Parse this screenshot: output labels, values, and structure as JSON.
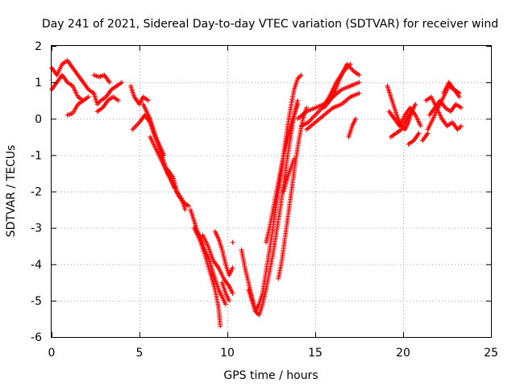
{
  "chart_data": {
    "type": "scatter",
    "title": "Day 241 of 2021, Sidereal Day-to-day VTEC variation (SDTVAR) for receiver wind",
    "xlabel": "GPS time / hours",
    "ylabel": "SDTVAR / TECUs",
    "xlim": [
      0,
      25
    ],
    "ylim": [
      -6,
      2
    ],
    "xticks": [
      0,
      5,
      10,
      15,
      20,
      25
    ],
    "yticks": [
      -6,
      -5,
      -4,
      -3,
      -2,
      -1,
      0,
      1,
      2
    ],
    "grid": true,
    "marker": "+",
    "color": "#ff0000",
    "series": [
      {
        "name": "SDTVAR",
        "segments": [
          {
            "x": [
              0.0,
              0.3,
              0.6,
              0.9,
              1.2,
              1.5,
              1.8,
              2.1,
              2.4
            ],
            "y": [
              1.4,
              1.2,
              1.5,
              1.6,
              1.4,
              1.2,
              1.0,
              0.8,
              0.7
            ]
          },
          {
            "x": [
              0.0,
              0.3,
              0.6,
              0.9,
              1.2,
              1.5,
              1.8
            ],
            "y": [
              0.8,
              1.0,
              1.2,
              1.0,
              0.9,
              0.6,
              0.5
            ]
          },
          {
            "x": [
              0.9,
              1.2,
              1.5,
              1.8,
              2.1
            ],
            "y": [
              0.1,
              0.15,
              0.4,
              0.5,
              0.6
            ]
          },
          {
            "x": [
              2.4,
              2.7,
              3.0,
              3.3
            ],
            "y": [
              1.2,
              1.15,
              1.2,
              1.0
            ]
          },
          {
            "x": [
              2.4,
              2.6,
              2.8,
              3.1,
              3.4,
              3.7,
              4.0
            ],
            "y": [
              0.7,
              0.4,
              0.5,
              0.6,
              0.8,
              0.9,
              1.0
            ]
          },
          {
            "x": [
              2.6,
              2.9,
              3.2,
              3.5,
              3.8
            ],
            "y": [
              0.2,
              0.3,
              0.5,
              0.6,
              0.5
            ]
          },
          {
            "x": [
              4.5,
              4.7,
              5.0,
              5.2,
              5.5
            ],
            "y": [
              0.9,
              0.6,
              0.4,
              0.6,
              0.5
            ]
          },
          {
            "x": [
              4.6,
              4.8,
              5.0,
              5.3,
              5.6,
              5.8,
              6.1,
              6.4
            ],
            "y": [
              -0.3,
              -0.2,
              -0.1,
              0.1,
              -0.1,
              -0.4,
              -0.7,
              -1.0
            ]
          },
          {
            "x": [
              5.2,
              5.4,
              5.6,
              5.8,
              6.0,
              6.2,
              6.4,
              6.6,
              6.8,
              7.0
            ],
            "y": [
              0.4,
              0.2,
              0.0,
              -0.3,
              -0.6,
              -0.9,
              -1.2,
              -1.5,
              -1.7,
              -1.9
            ]
          },
          {
            "x": [
              5.6,
              5.9,
              6.2,
              6.5,
              6.8,
              7.1,
              7.4,
              7.6
            ],
            "y": [
              -0.5,
              -0.8,
              -1.1,
              -1.4,
              -1.7,
              -2.0,
              -2.2,
              -2.5
            ]
          },
          {
            "x": [
              6.6,
              6.9,
              7.2,
              7.5,
              7.8
            ],
            "y": [
              -1.4,
              -1.6,
              -2.1,
              -2.3,
              -2.4
            ]
          },
          {
            "x": [
              7.9,
              8.1,
              8.3,
              8.5,
              8.7,
              8.9,
              9.1,
              9.3,
              9.5,
              9.7,
              9.9
            ],
            "y": [
              -2.5,
              -2.8,
              -3.1,
              -3.3,
              -3.6,
              -3.8,
              -4.1,
              -4.4,
              -4.7,
              -4.9,
              -5.1
            ]
          },
          {
            "x": [
              8.1,
              8.4,
              8.7,
              9.0,
              9.3,
              9.5,
              9.6
            ],
            "y": [
              -3.0,
              -3.3,
              -3.7,
              -4.2,
              -4.7,
              -5.2,
              -5.7
            ]
          },
          {
            "x": [
              8.6,
              8.9,
              9.2,
              9.5,
              9.8,
              10.1,
              10.3
            ],
            "y": [
              -3.2,
              -3.5,
              -3.9,
              -4.1,
              -4.4,
              -4.6,
              -4.8
            ]
          },
          {
            "x": [
              9.3,
              9.5,
              9.7,
              9.9,
              10.1,
              10.3
            ],
            "y": [
              -3.1,
              -3.3,
              -3.6,
              -4.0,
              -4.3,
              -4.1
            ]
          },
          {
            "x": [
              9.7,
              9.9,
              10.1
            ],
            "y": [
              -4.5,
              -4.8,
              -5.0
            ]
          },
          {
            "x": [
              10.3
            ],
            "y": [
              -3.4
            ]
          },
          {
            "x": [
              10.8,
              11.0,
              11.2,
              11.4,
              11.6,
              11.8,
              12.0,
              12.2,
              12.4,
              12.6,
              12.8,
              13.0,
              13.2,
              13.4,
              13.6,
              13.8,
              14.0
            ],
            "y": [
              -3.6,
              -4.1,
              -4.5,
              -4.9,
              -5.3,
              -5.4,
              -5.1,
              -4.7,
              -4.2,
              -3.7,
              -3.1,
              -2.5,
              -1.8,
              -1.1,
              -0.5,
              0.1,
              0.5
            ]
          },
          {
            "x": [
              11.2,
              11.4,
              11.6,
              11.8,
              12.0,
              12.2,
              12.4,
              12.6,
              12.8,
              13.0,
              13.2,
              13.4,
              13.6,
              13.8,
              14.0,
              14.2
            ],
            "y": [
              -4.7,
              -5.0,
              -5.3,
              -5.1,
              -4.8,
              -4.2,
              -3.6,
              -3.0,
              -2.3,
              -1.7,
              -1.0,
              -0.3,
              0.3,
              0.8,
              1.1,
              1.2
            ]
          },
          {
            "x": [
              12.2,
              12.4,
              12.6,
              12.8,
              13.0,
              13.2,
              13.4,
              13.6,
              13.8,
              14.0
            ],
            "y": [
              -3.4,
              -3.0,
              -2.5,
              -2.0,
              -1.5,
              -1.0,
              -0.6,
              -0.2,
              0.1,
              0.4
            ]
          },
          {
            "x": [
              12.9,
              13.1,
              13.3,
              13.5,
              13.7,
              13.9,
              14.1,
              14.3,
              14.5
            ],
            "y": [
              -4.4,
              -3.9,
              -3.2,
              -2.5,
              -1.8,
              -1.1,
              -0.5,
              0.0,
              0.3
            ]
          },
          {
            "x": [
              13.2,
              13.5,
              13.8
            ],
            "y": [
              -2.0,
              -1.5,
              -1.1
            ]
          },
          {
            "x": [
              14.0,
              14.5,
              15.0,
              15.5,
              16.0,
              16.5,
              17.0,
              17.5
            ],
            "y": [
              0.0,
              0.2,
              0.3,
              0.4,
              0.6,
              0.8,
              0.9,
              1.0
            ]
          },
          {
            "x": [
              14.2,
              14.6,
              15.0,
              15.4,
              15.8,
              16.2,
              16.6,
              17.0
            ],
            "y": [
              -0.2,
              -0.1,
              0.1,
              0.3,
              0.6,
              1.0,
              1.3,
              1.5
            ]
          },
          {
            "x": [
              14.5,
              15.0,
              15.5,
              16.0,
              16.5,
              17.0,
              17.5
            ],
            "y": [
              -0.3,
              -0.1,
              0.1,
              0.3,
              0.4,
              0.6,
              0.7
            ]
          },
          {
            "x": [
              15.5,
              16.0,
              16.4,
              16.8,
              17.2,
              17.5
            ],
            "y": [
              0.3,
              0.6,
              1.1,
              1.5,
              1.3,
              1.2
            ]
          },
          {
            "x": [
              16.9,
              17.1,
              17.3
            ],
            "y": [
              -0.5,
              -0.2,
              0.0
            ]
          },
          {
            "x": [
              19.1,
              19.3,
              19.5,
              19.7,
              19.9,
              20.1,
              20.3,
              20.5,
              20.7
            ],
            "y": [
              0.9,
              0.6,
              0.3,
              0.0,
              -0.2,
              -0.3,
              -0.1,
              0.2,
              0.4
            ]
          },
          {
            "x": [
              19.2,
              19.5,
              19.8,
              20.1,
              20.4,
              20.7,
              21.0
            ],
            "y": [
              0.2,
              0.0,
              -0.2,
              0.1,
              0.3,
              0.1,
              -0.2
            ]
          },
          {
            "x": [
              19.3,
              19.6,
              19.9,
              20.2,
              20.5
            ],
            "y": [
              -0.5,
              -0.4,
              -0.3,
              0.0,
              0.2
            ]
          },
          {
            "x": [
              20.3,
              20.6,
              20.9
            ],
            "y": [
              -0.7,
              -0.6,
              -0.4
            ]
          },
          {
            "x": [
              21.3,
              21.6,
              21.9,
              22.2,
              22.5,
              22.8,
              23.1,
              23.3
            ],
            "y": [
              0.5,
              0.6,
              0.3,
              0.0,
              -0.2,
              -0.1,
              -0.3,
              -0.2
            ]
          },
          {
            "x": [
              21.4,
              21.7,
              22.0,
              22.3,
              22.6,
              22.9,
              23.2
            ],
            "y": [
              -0.3,
              0.0,
              0.3,
              0.6,
              0.9,
              0.8,
              0.6
            ]
          },
          {
            "x": [
              21.5,
              21.8,
              22.1,
              22.4,
              22.7,
              23.0,
              23.3
            ],
            "y": [
              0.1,
              0.3,
              0.5,
              0.3,
              0.2,
              0.4,
              0.3
            ]
          },
          {
            "x": [
              22.3,
              22.6,
              22.9,
              23.2
            ],
            "y": [
              0.7,
              1.0,
              0.8,
              0.7
            ]
          },
          {
            "x": [
              21.1,
              21.4
            ],
            "y": [
              -0.6,
              -0.4
            ]
          }
        ]
      }
    ]
  }
}
